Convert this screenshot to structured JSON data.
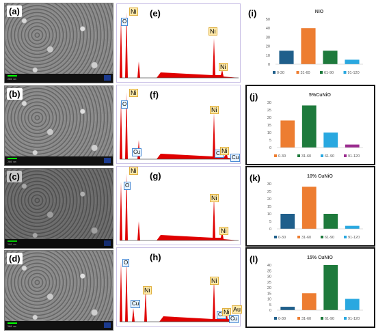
{
  "sem_panels": [
    "(a)",
    "(b)",
    "(c)",
    "(d)"
  ],
  "sem_scale_texts": [
    "200 nm",
    "200 nm",
    "200 nm",
    "200 nm"
  ],
  "eds_panels": [
    {
      "label": "(e)",
      "tags": [
        {
          "text": "O",
          "type": "blue-o"
        },
        {
          "text": "Ni",
          "type": "ni"
        },
        {
          "text": "Ni",
          "type": "ni"
        },
        {
          "text": "Ni",
          "type": "ni"
        }
      ]
    },
    {
      "label": "(f)",
      "tags": [
        {
          "text": "O",
          "type": "blue-o"
        },
        {
          "text": "Ni",
          "type": "ni"
        },
        {
          "text": "Cu",
          "type": "cu"
        },
        {
          "text": "Ni",
          "type": "ni"
        },
        {
          "text": "Cu",
          "type": "cu"
        },
        {
          "text": "Ni",
          "type": "ni"
        },
        {
          "text": "Cu",
          "type": "cu"
        }
      ]
    },
    {
      "label": "(g)",
      "tags": [
        {
          "text": "O",
          "type": "blue-o"
        },
        {
          "text": "Ni",
          "type": "ni"
        },
        {
          "text": "Ni",
          "type": "ni"
        },
        {
          "text": "Ni",
          "type": "ni"
        }
      ]
    },
    {
      "label": "(h)",
      "tags": [
        {
          "text": "O",
          "type": "blue-o"
        },
        {
          "text": "Cu",
          "type": "cu"
        },
        {
          "text": "Ni",
          "type": "ni"
        },
        {
          "text": "Ni",
          "type": "ni"
        },
        {
          "text": "Cu",
          "type": "cu"
        },
        {
          "text": "Ni",
          "type": "ni"
        },
        {
          "text": "Cu",
          "type": "cu"
        },
        {
          "text": "Au",
          "type": "au"
        }
      ]
    }
  ],
  "chart_data": [
    {
      "type": "bar",
      "panel": "(i)",
      "title": "NiO",
      "categories": [
        "0-30",
        "31-60",
        "61-90",
        "91-120"
      ],
      "values": [
        15,
        40,
        15,
        5
      ],
      "ylim": [
        0,
        50
      ],
      "yticks": [
        0,
        10,
        20,
        30,
        40,
        50
      ],
      "colors": [
        "#1f5f8b",
        "#ed7d31",
        "#1e7a3c",
        "#29a8e0"
      ],
      "legend": "bottom"
    },
    {
      "type": "bar",
      "panel": "(j)",
      "title": "5%CuNiO",
      "categories": [
        "0-30",
        "31-60",
        "61-90",
        "91-120"
      ],
      "values": [
        18,
        28,
        10,
        2
      ],
      "ylim": [
        0,
        30
      ],
      "yticks": [
        0,
        5,
        10,
        15,
        20,
        25,
        30
      ],
      "colors": [
        "#ed7d31",
        "#1e7a3c",
        "#29a8e0",
        "#9b2d8f"
      ],
      "legend": "bottom"
    },
    {
      "type": "bar",
      "panel": "(k)",
      "title": "10% CuNiO",
      "categories": [
        "0-30",
        "31-60",
        "61-90",
        "91-120"
      ],
      "values": [
        10,
        28,
        10,
        2
      ],
      "ylim": [
        0,
        30
      ],
      "yticks": [
        0,
        5,
        10,
        15,
        20,
        25,
        30
      ],
      "colors": [
        "#1f5f8b",
        "#ed7d31",
        "#1e7a3c",
        "#29a8e0"
      ],
      "legend": "bottom"
    },
    {
      "type": "bar",
      "panel": "(l)",
      "title": "15% CuNiO",
      "categories": [
        "0-30",
        "31-60",
        "61-90",
        "91-120"
      ],
      "values": [
        3,
        15,
        40,
        10
      ],
      "ylim": [
        0,
        40
      ],
      "yticks": [
        0,
        5,
        10,
        15,
        20,
        25,
        30,
        35,
        40
      ],
      "colors": [
        "#1f5f8b",
        "#ed7d31",
        "#1e7a3c",
        "#29a8e0"
      ],
      "legend": "bottom"
    }
  ]
}
